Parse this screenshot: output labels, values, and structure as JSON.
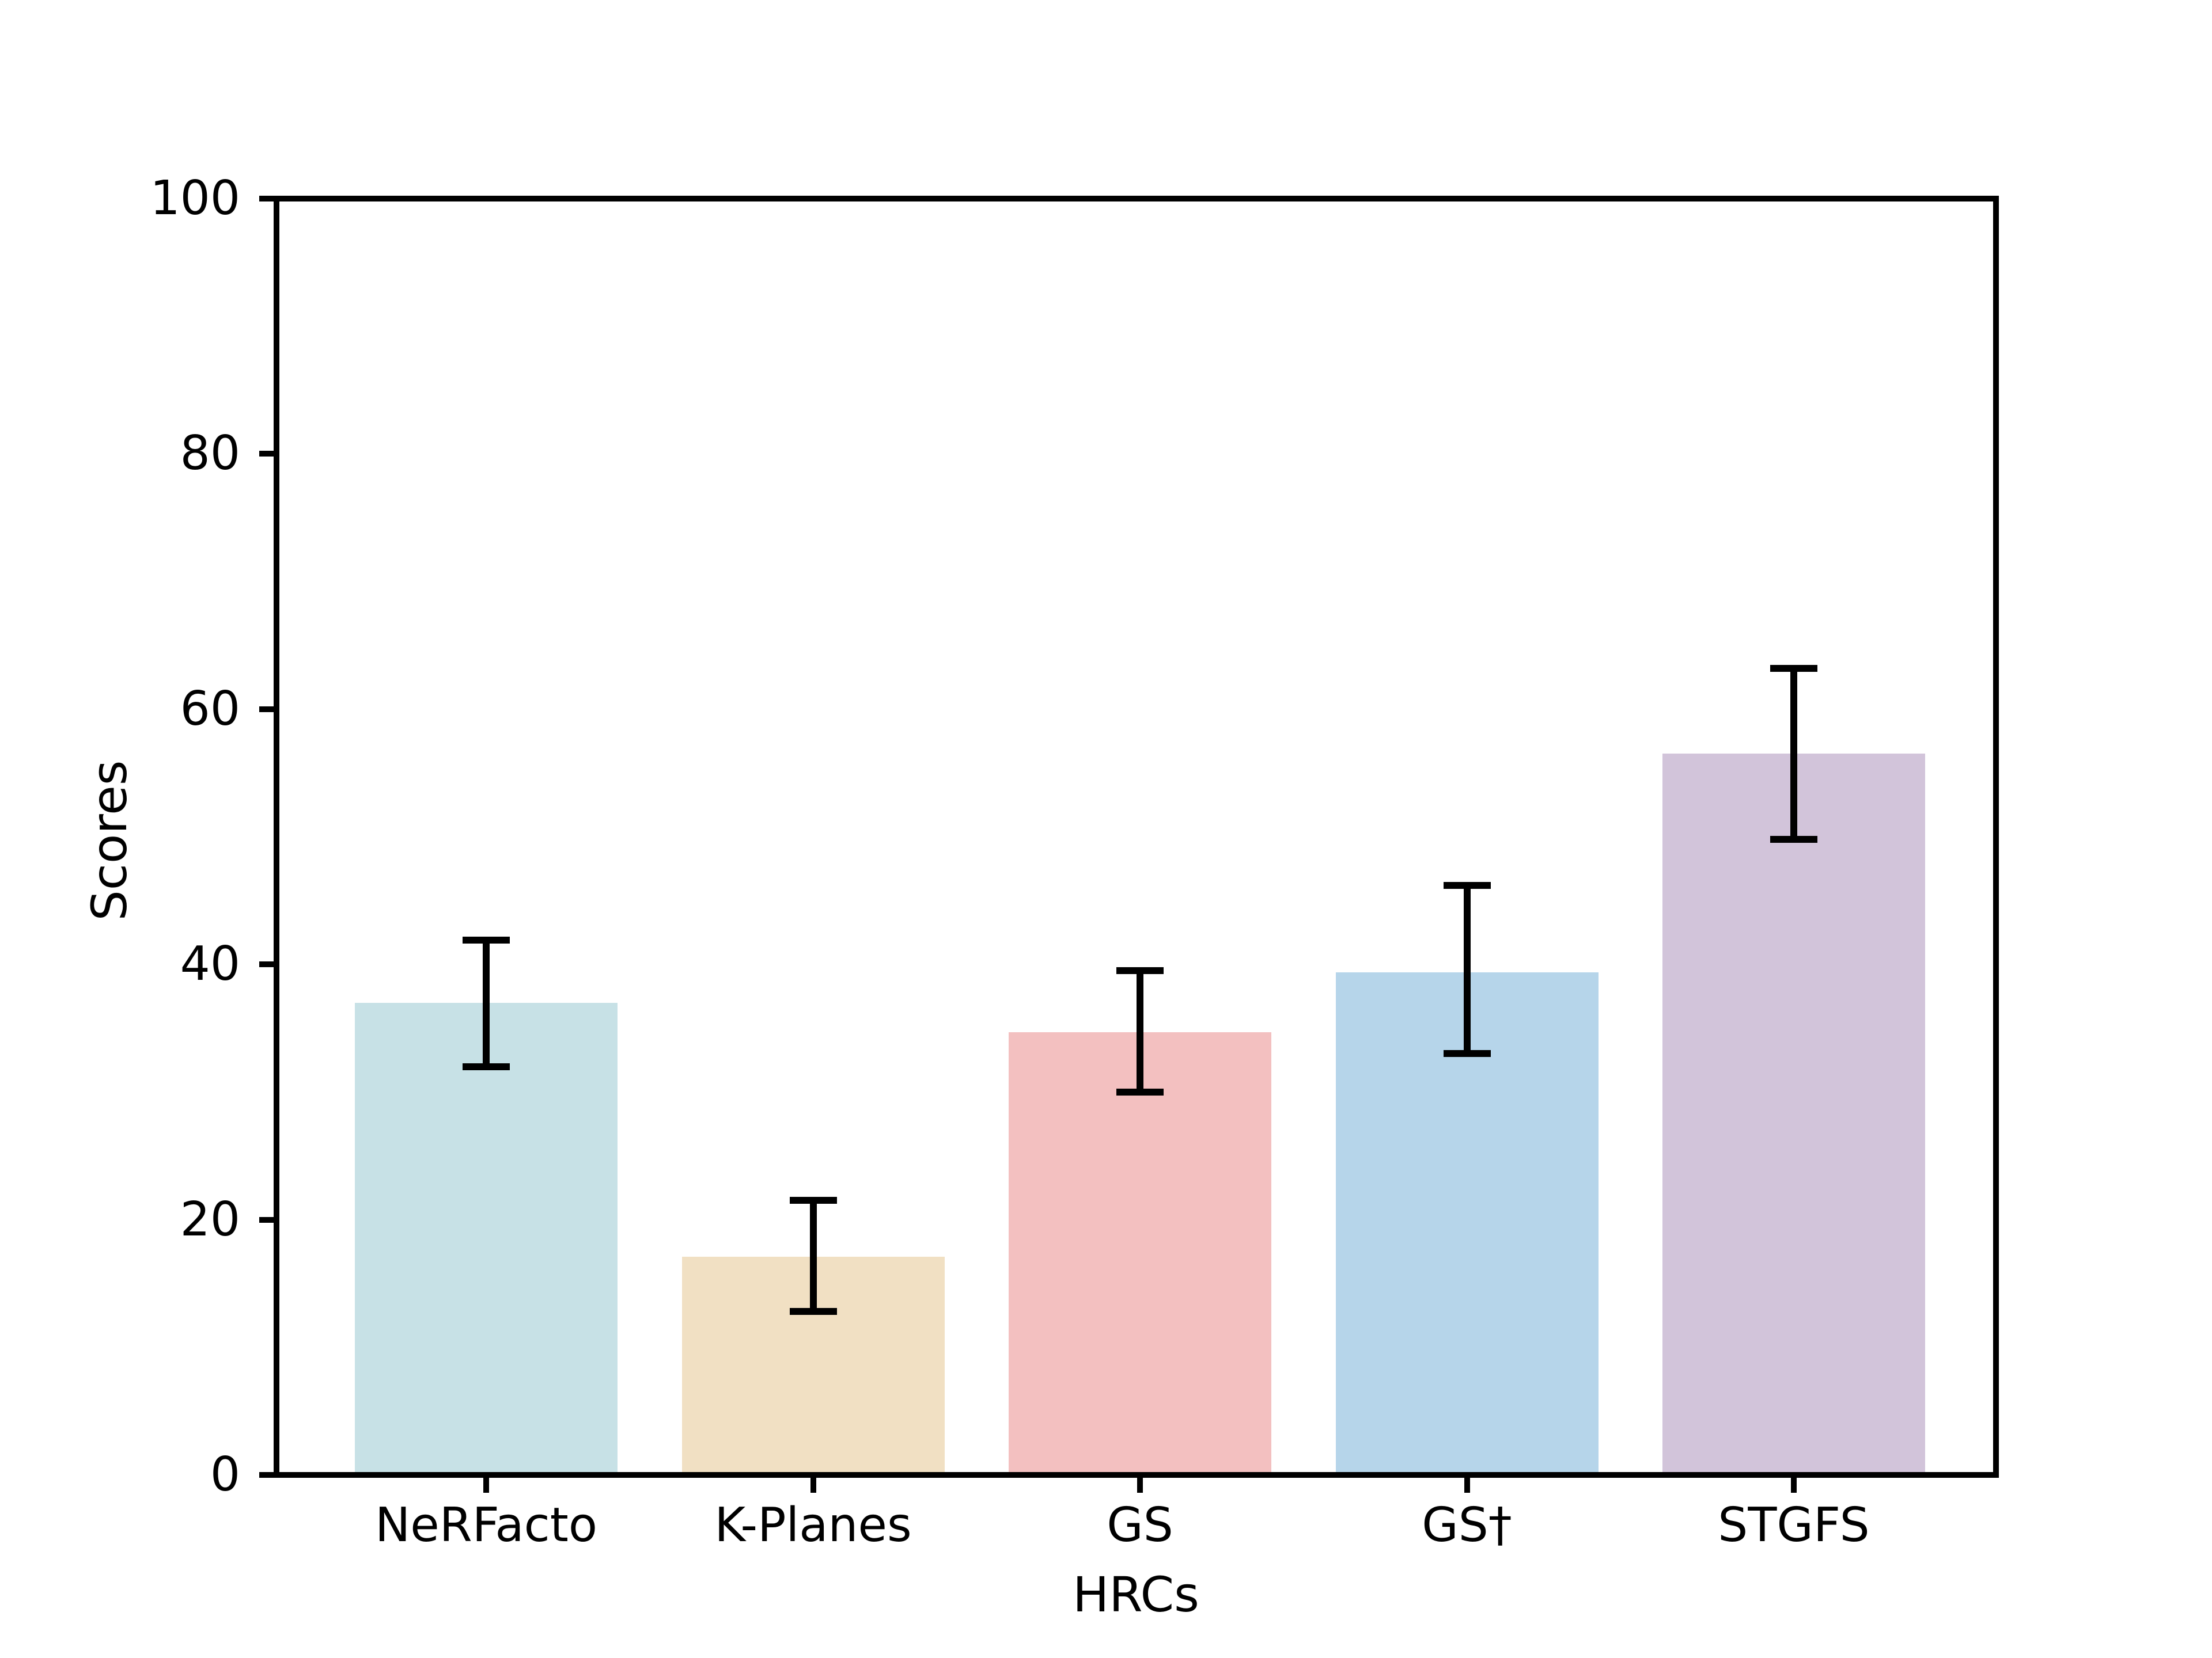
{
  "figure": {
    "background_color": "#ffffff",
    "axis_color": "#000000",
    "error_bar_color": "#000000"
  },
  "chart_data": {
    "type": "bar",
    "title": "",
    "xlabel": "HRCs",
    "ylabel": "Scores",
    "categories": [
      "NeRFacto",
      "K-Planes",
      "GS",
      "GS†",
      "STGFS"
    ],
    "values": [
      37.0,
      17.1,
      34.7,
      39.4,
      56.5
    ],
    "error_low": [
      32.0,
      12.8,
      30.0,
      33.0,
      49.8
    ],
    "error_high": [
      41.9,
      21.5,
      39.5,
      46.2,
      63.2
    ],
    "bar_colors": [
      "#c7e1e6",
      "#f1e0c3",
      "#f3c0c0",
      "#b6d5ea",
      "#d2c4da"
    ],
    "ylim": [
      0,
      100
    ],
    "yticks": [
      0,
      20,
      40,
      60,
      80,
      100
    ],
    "grid": false,
    "legend": "none",
    "error_bars": "symmetric-caps",
    "spines": "full-box"
  }
}
